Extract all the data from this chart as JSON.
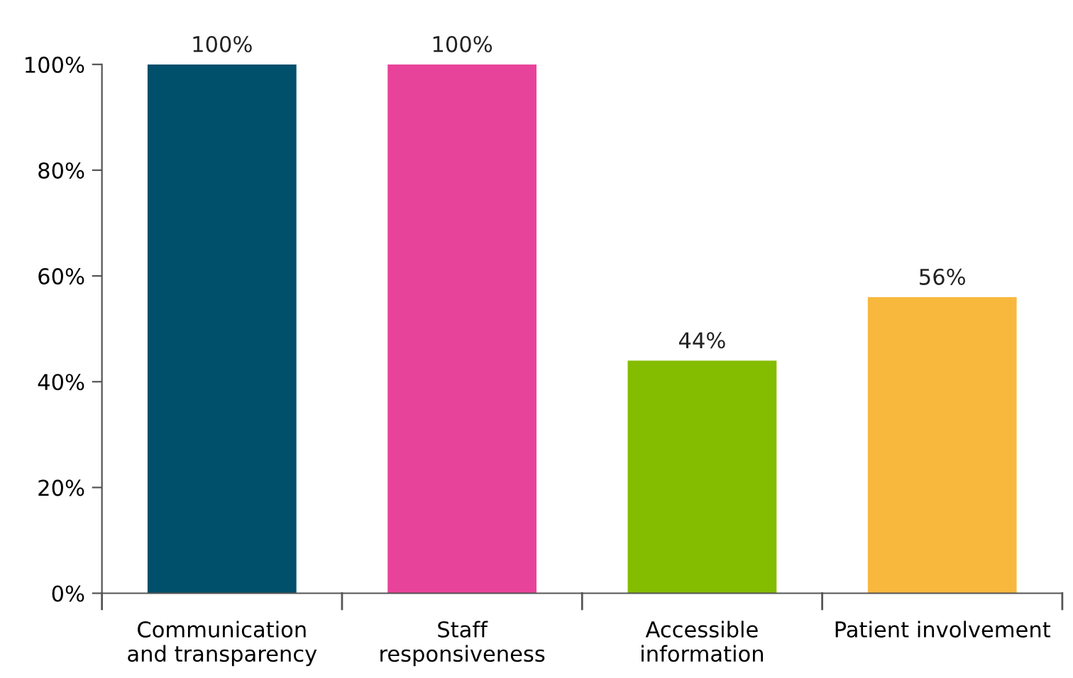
{
  "chart_data": {
    "type": "bar",
    "categories": [
      "Communication\nand transparency",
      "Staff\nresponsiveness",
      "Accessible\ninformation",
      "Patient involvement"
    ],
    "values": [
      100,
      100,
      44,
      56
    ],
    "colors": [
      "#004f6b",
      "#e8439a",
      "#84bc00",
      "#f8b83e"
    ],
    "value_labels": [
      "100%",
      "100%",
      "44%",
      "56%"
    ],
    "ylim": [
      0,
      100
    ],
    "yticks": [
      {
        "value": 0,
        "label": "0%"
      },
      {
        "value": 20,
        "label": "20%"
      },
      {
        "value": 40,
        "label": "40%"
      },
      {
        "value": 60,
        "label": "60%"
      },
      {
        "value": 80,
        "label": "80%"
      },
      {
        "value": 100,
        "label": "100%"
      }
    ],
    "grid": false,
    "legend": false
  }
}
